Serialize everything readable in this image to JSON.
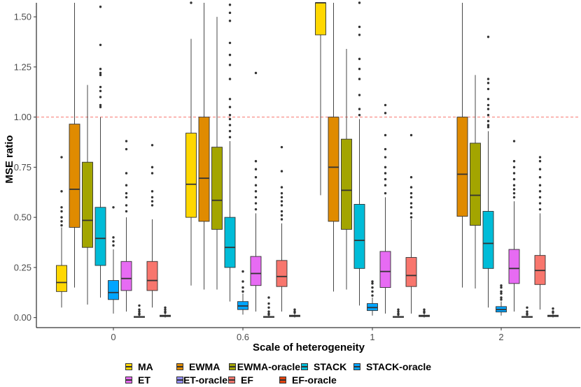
{
  "chart_data": {
    "type": "boxplot",
    "xlabel": "Scale of heterogeneity",
    "ylabel": "MSE ratio",
    "categories": [
      "0",
      "0.6",
      "1",
      "2"
    ],
    "ylim": [
      -0.05,
      1.57
    ],
    "yticks": [
      0.0,
      0.25,
      0.5,
      0.75,
      1.0,
      1.25,
      1.5
    ],
    "ytick_labels": [
      "0.00",
      "0.25",
      "0.50",
      "0.75",
      "1.00",
      "1.25",
      "1.50"
    ],
    "reference_line": {
      "y": 1.0,
      "style": "dashed",
      "color": "#F8766D"
    },
    "legend_position": "bottom",
    "series": [
      {
        "name": "MA",
        "color": "#FFD700",
        "boxes": [
          {
            "q1": 0.13,
            "median": 0.175,
            "q3": 0.26,
            "whisker_low": 0.05,
            "whisker_high": 0.45,
            "outliers": [
              0.46,
              0.48,
              0.5,
              0.53,
              0.55,
              0.63,
              0.8
            ]
          },
          {
            "q1": 0.5,
            "median": 0.665,
            "q3": 0.92,
            "whisker_low": 0.16,
            "whisker_high": 1.39,
            "outliers": [
              1.57
            ]
          },
          {
            "q1": 1.41,
            "median": 1.57,
            "q3": 1.57,
            "whisker_low": 0.61,
            "whisker_high": 1.57,
            "outliers": []
          },
          null
        ]
      },
      {
        "name": "EWMA",
        "color": "#E08B00",
        "boxes": [
          {
            "q1": 0.45,
            "median": 0.64,
            "q3": 0.965,
            "whisker_low": 0.15,
            "whisker_high": 1.57,
            "outliers": []
          },
          {
            "q1": 0.48,
            "median": 0.695,
            "q3": 1.0,
            "whisker_low": 0.14,
            "whisker_high": 1.57,
            "outliers": []
          },
          {
            "q1": 0.48,
            "median": 0.75,
            "q3": 1.0,
            "whisker_low": 0.13,
            "whisker_high": 1.57,
            "outliers": []
          },
          {
            "q1": 0.505,
            "median": 0.715,
            "q3": 1.0,
            "whisker_low": 0.15,
            "whisker_high": 1.57,
            "outliers": []
          }
        ]
      },
      {
        "name": "EWMA-oracle",
        "color": "#A3A500",
        "boxes": [
          {
            "q1": 0.35,
            "median": 0.485,
            "q3": 0.775,
            "whisker_low": 0.065,
            "whisker_high": 1.16,
            "outliers": []
          },
          {
            "q1": 0.44,
            "median": 0.585,
            "q3": 0.85,
            "whisker_low": 0.14,
            "whisker_high": 1.5,
            "outliers": []
          },
          {
            "q1": 0.44,
            "median": 0.635,
            "q3": 0.89,
            "whisker_low": 0.14,
            "whisker_high": 1.34,
            "outliers": []
          },
          {
            "q1": 0.46,
            "median": 0.61,
            "q3": 0.87,
            "whisker_low": 0.145,
            "whisker_high": 1.21,
            "outliers": []
          }
        ]
      },
      {
        "name": "STACK",
        "color": "#00BCD8",
        "boxes": [
          {
            "q1": 0.26,
            "median": 0.395,
            "q3": 0.55,
            "whisker_low": 0.1,
            "whisker_high": 1.0,
            "outliers": [
              1.05,
              1.06,
              1.1,
              1.13,
              1.15,
              1.21,
              1.22,
              1.24,
              1.36,
              1.55
            ]
          },
          {
            "q1": 0.25,
            "median": 0.35,
            "q3": 0.5,
            "whisker_low": 0.08,
            "whisker_high": 0.88,
            "outliers": [
              0.9,
              0.93,
              0.96,
              0.99,
              1.01,
              1.05,
              1.09,
              1.19,
              1.26,
              1.31,
              1.37,
              1.48,
              1.52,
              1.56
            ]
          },
          {
            "q1": 0.245,
            "median": 0.385,
            "q3": 0.565,
            "whisker_low": 0.06,
            "whisker_high": 0.99,
            "outliers": [
              1.01,
              1.04,
              1.11,
              1.19,
              1.24,
              1.29,
              1.41,
              1.45,
              1.57
            ]
          },
          {
            "q1": 0.245,
            "median": 0.37,
            "q3": 0.53,
            "whisker_low": 0.05,
            "whisker_high": 0.93,
            "outliers": [
              0.95,
              0.96,
              0.98,
              1.01,
              1.04,
              1.06,
              1.09,
              1.14,
              1.17,
              1.19,
              1.4
            ]
          }
        ]
      },
      {
        "name": "STACK-oracle",
        "color": "#00A5FF",
        "boxes": [
          {
            "q1": 0.09,
            "median": 0.125,
            "q3": 0.185,
            "whisker_low": 0.02,
            "whisker_high": 0.34,
            "outliers": [
              0.36,
              0.38,
              0.4,
              0.55
            ]
          },
          {
            "q1": 0.04,
            "median": 0.058,
            "q3": 0.08,
            "whisker_low": 0.015,
            "whisker_high": 0.12,
            "outliers": [
              0.13,
              0.15,
              0.18,
              0.23
            ]
          },
          {
            "q1": 0.035,
            "median": 0.05,
            "q3": 0.07,
            "whisker_low": 0.01,
            "whisker_high": 0.1,
            "outliers": [
              0.11,
              0.13,
              0.15,
              0.17,
              0.18
            ]
          },
          {
            "q1": 0.028,
            "median": 0.04,
            "q3": 0.055,
            "whisker_low": 0.01,
            "whisker_high": 0.08,
            "outliers": [
              0.09,
              0.1,
              0.12,
              0.13,
              0.15,
              0.16
            ]
          }
        ]
      },
      {
        "name": "ET",
        "color": "#E76BF3",
        "boxes": [
          {
            "q1": 0.135,
            "median": 0.195,
            "q3": 0.28,
            "whisker_low": 0.03,
            "whisker_high": 0.5,
            "outliers": [
              0.53,
              0.56,
              0.6,
              0.62,
              0.66,
              0.72,
              0.84,
              0.88
            ]
          },
          {
            "q1": 0.16,
            "median": 0.22,
            "q3": 0.305,
            "whisker_low": 0.03,
            "whisker_high": 0.52,
            "outliers": [
              0.54,
              0.57,
              0.6,
              0.63,
              0.66,
              0.7,
              0.74,
              0.78,
              1.22
            ]
          },
          {
            "q1": 0.15,
            "median": 0.23,
            "q3": 0.33,
            "whisker_low": 0.02,
            "whisker_high": 0.6,
            "outliers": [
              0.62,
              0.66,
              0.69,
              0.72,
              0.75,
              0.8,
              0.84,
              0.91,
              1.02,
              1.06
            ]
          },
          {
            "q1": 0.17,
            "median": 0.245,
            "q3": 0.34,
            "whisker_low": 0.03,
            "whisker_high": 0.58,
            "outliers": [
              0.6,
              0.62,
              0.64,
              0.66,
              0.69,
              0.72,
              0.75,
              0.78,
              0.88
            ]
          }
        ]
      },
      {
        "name": "ET-oracle",
        "color": "#9590FF",
        "boxes": [
          {
            "q1": 0.002,
            "median": 0.004,
            "q3": 0.006,
            "whisker_low": 0.0,
            "whisker_high": 0.01,
            "outliers": [
              0.015,
              0.02,
              0.03,
              0.04,
              0.06
            ]
          },
          {
            "q1": 0.002,
            "median": 0.004,
            "q3": 0.006,
            "whisker_low": 0.0,
            "whisker_high": 0.01,
            "outliers": [
              0.015,
              0.02,
              0.03,
              0.05,
              0.07,
              0.1
            ]
          },
          {
            "q1": 0.002,
            "median": 0.004,
            "q3": 0.006,
            "whisker_low": 0.0,
            "whisker_high": 0.01,
            "outliers": [
              0.015,
              0.02,
              0.03,
              0.04
            ]
          },
          {
            "q1": 0.002,
            "median": 0.004,
            "q3": 0.006,
            "whisker_low": 0.0,
            "whisker_high": 0.01,
            "outliers": [
              0.015,
              0.02,
              0.03,
              0.05
            ]
          }
        ]
      },
      {
        "name": "EF",
        "color": "#F8766D",
        "boxes": [
          {
            "q1": 0.135,
            "median": 0.185,
            "q3": 0.28,
            "whisker_low": 0.05,
            "whisker_high": 0.49,
            "outliers": [
              0.56,
              0.58,
              0.6,
              0.63,
              0.72,
              0.75,
              0.86
            ]
          },
          {
            "q1": 0.155,
            "median": 0.205,
            "q3": 0.285,
            "whisker_low": 0.03,
            "whisker_high": 0.47,
            "outliers": [
              0.49,
              0.51,
              0.53,
              0.56,
              0.58,
              0.6,
              0.62,
              0.65,
              0.73,
              0.85
            ]
          },
          {
            "q1": 0.155,
            "median": 0.21,
            "q3": 0.3,
            "whisker_low": 0.02,
            "whisker_high": 0.49,
            "outliers": [
              0.5,
              0.52,
              0.55,
              0.57,
              0.6,
              0.62,
              0.65,
              0.7,
              0.91
            ]
          },
          {
            "q1": 0.165,
            "median": 0.235,
            "q3": 0.31,
            "whisker_low": 0.04,
            "whisker_high": 0.52,
            "outliers": [
              0.54,
              0.57,
              0.6,
              0.63,
              0.66,
              0.7,
              0.74,
              0.78,
              0.8
            ]
          }
        ]
      },
      {
        "name": "EF-oracle",
        "color": "#E5440E",
        "boxes": [
          {
            "q1": 0.005,
            "median": 0.008,
            "q3": 0.012,
            "whisker_low": 0.0,
            "whisker_high": 0.02,
            "outliers": [
              0.025,
              0.03,
              0.04,
              0.05
            ]
          },
          {
            "q1": 0.005,
            "median": 0.008,
            "q3": 0.012,
            "whisker_low": 0.0,
            "whisker_high": 0.02,
            "outliers": [
              0.025,
              0.03,
              0.04
            ]
          },
          {
            "q1": 0.005,
            "median": 0.008,
            "q3": 0.012,
            "whisker_low": 0.0,
            "whisker_high": 0.02,
            "outliers": [
              0.025,
              0.03,
              0.04
            ]
          },
          {
            "q1": 0.005,
            "median": 0.008,
            "q3": 0.012,
            "whisker_low": 0.0,
            "whisker_high": 0.02,
            "outliers": [
              0.025,
              0.03,
              0.045
            ]
          }
        ]
      }
    ],
    "legend": {
      "rows": [
        [
          "MA",
          "EWMA",
          "EWMA-oracle",
          "STACK",
          "STACK-oracle"
        ],
        [
          "ET",
          "ET-oracle",
          "EF",
          "EF-oracle"
        ]
      ]
    }
  }
}
